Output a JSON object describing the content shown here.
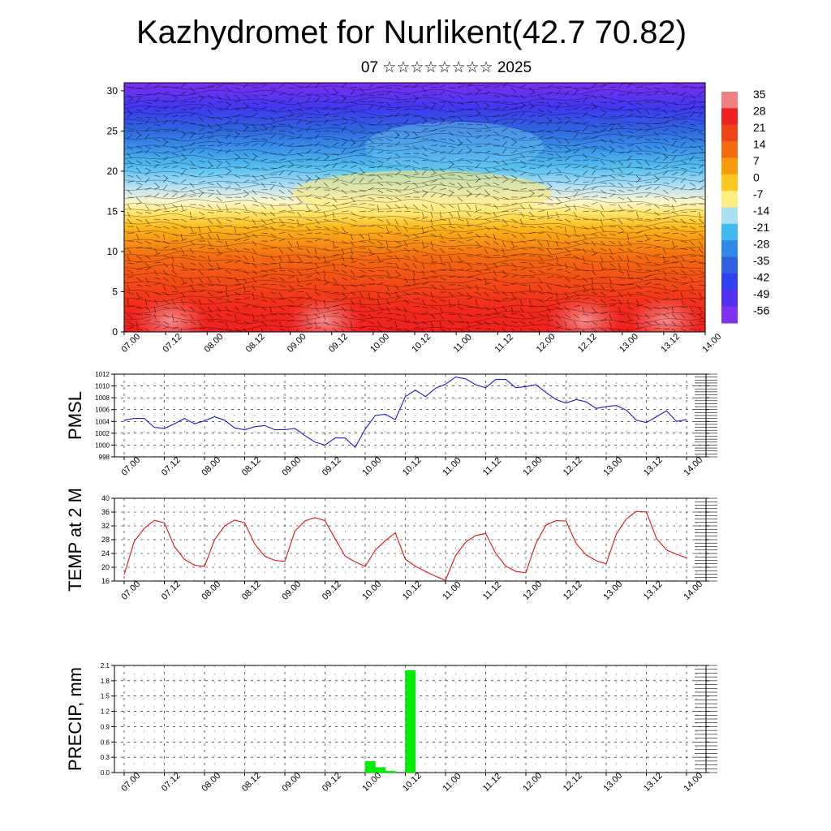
{
  "header": {
    "title": "Kazhydromet for Nurlikent(42.7 70.82)",
    "subtitle": "07 ☆☆☆☆☆☆☆☆ 2025"
  },
  "chart_data": [
    {
      "type": "heatmap",
      "name": "temperature cross-section with wind barbs",
      "ylim": [
        0,
        31
      ],
      "y_ticks": [
        "0",
        "5",
        "10",
        "15",
        "20",
        "25",
        "30"
      ],
      "x_ticks": [
        "07.00",
        "07.12",
        "08.00",
        "08.12",
        "09.00",
        "09.12",
        "10.00",
        "10.12",
        "11.00",
        "11.12",
        "12.00",
        "12.12",
        "13.00",
        "13.12",
        "14.00"
      ],
      "colorbar": {
        "labels": [
          "35",
          "28",
          "21",
          "14",
          "7",
          "0",
          "-7",
          "-14",
          "-21",
          "-28",
          "-35",
          "-42",
          "-49",
          "-56"
        ],
        "colors": [
          "#f08080",
          "#ee2222",
          "#f04418",
          "#f46a10",
          "#f89a0a",
          "#fcc820",
          "#ffee80",
          "#a8e0f0",
          "#40b8f0",
          "#3088e8",
          "#3060e0",
          "#3040f0",
          "#5030f0",
          "#8030f0"
        ]
      }
    },
    {
      "type": "line",
      "ylabel": "PMSL",
      "ylim": [
        998,
        1012
      ],
      "y_ticks": [
        "998",
        "1000",
        "1002",
        "1004",
        "1006",
        "1008",
        "1010",
        "1012"
      ],
      "x_ticks": [
        "07.00",
        "07.12",
        "08.00",
        "08.12",
        "09.00",
        "09.12",
        "10.00",
        "10.12",
        "11.00",
        "11.12",
        "12.00",
        "12.12",
        "13.00",
        "13.12",
        "14.00"
      ],
      "color": "#1a1adc",
      "x": [
        0,
        3,
        6,
        9,
        12,
        15,
        18,
        21,
        24,
        27,
        30,
        33,
        36,
        39,
        42,
        45,
        48,
        51,
        54,
        57,
        60,
        63,
        66,
        69,
        72,
        75,
        78,
        81,
        84,
        87,
        90,
        93,
        96,
        99,
        102,
        105,
        108,
        111,
        114,
        117,
        120,
        123,
        126,
        129,
        132,
        135,
        138,
        141,
        144,
        147,
        150,
        153,
        156,
        159,
        162,
        165,
        168
      ],
      "values": [
        1004.2,
        1004.5,
        1004.5,
        1003.0,
        1002.8,
        1003.6,
        1004.5,
        1003.6,
        1004.1,
        1004.8,
        1004.2,
        1002.9,
        1002.6,
        1003.1,
        1003.3,
        1002.6,
        1002.6,
        1002.8,
        1001.6,
        1000.5,
        1000.0,
        1001.2,
        1001.2,
        999.6,
        1002.7,
        1005.0,
        1005.2,
        1004.3,
        1008.2,
        1009.3,
        1008.2,
        1009.6,
        1010.3,
        1011.5,
        1011.2,
        1010.2,
        1009.7,
        1011.1,
        1011.1,
        1009.7,
        1009.9,
        1010.2,
        1008.9,
        1007.7,
        1007.1,
        1007.7,
        1007.3,
        1006.2,
        1006.5,
        1006.7,
        1005.9,
        1004.2,
        1003.8,
        1004.8,
        1005.8,
        1004.0,
        1004.3
      ]
    },
    {
      "type": "line",
      "ylabel": "TEMP at 2 M",
      "ylim": [
        16,
        40
      ],
      "y_ticks": [
        "16",
        "20",
        "24",
        "28",
        "32",
        "36",
        "40"
      ],
      "x_ticks": [
        "07.00",
        "07.12",
        "08.00",
        "08.12",
        "09.00",
        "09.12",
        "10.00",
        "10.12",
        "11.00",
        "11.12",
        "12.00",
        "12.12",
        "13.00",
        "13.12",
        "14.00"
      ],
      "color": "#dd1111",
      "x": [
        0,
        3,
        6,
        9,
        12,
        15,
        18,
        21,
        24,
        27,
        30,
        33,
        36,
        39,
        42,
        45,
        48,
        51,
        54,
        57,
        60,
        63,
        66,
        69,
        72,
        75,
        78,
        81,
        84,
        87,
        90,
        93,
        96,
        99,
        102,
        105,
        108,
        111,
        114,
        117,
        120,
        123,
        126,
        129,
        132,
        135,
        138,
        141,
        144,
        147,
        150,
        153,
        156,
        159,
        162,
        165,
        168
      ],
      "values": [
        17.8,
        27.5,
        31.3,
        33.6,
        32.9,
        26.0,
        22.3,
        20.6,
        20.2,
        28.0,
        32.0,
        33.7,
        32.9,
        26.7,
        23.2,
        22.0,
        21.7,
        30.5,
        33.4,
        34.4,
        33.5,
        28.3,
        23.2,
        21.6,
        20.2,
        25.0,
        27.7,
        30.0,
        22.3,
        20.3,
        18.8,
        17.4,
        16.2,
        23.4,
        27.3,
        29.2,
        29.8,
        24.0,
        20.3,
        18.8,
        18.4,
        27.0,
        32.2,
        33.5,
        33.4,
        26.9,
        23.6,
        21.9,
        21.0,
        29.6,
        34.0,
        36.2,
        36.0,
        28.4,
        25.0,
        23.8,
        22.7
      ]
    },
    {
      "type": "bar",
      "ylabel": "PRECIP, mm",
      "ylim": [
        0,
        2.1
      ],
      "y_ticks": [
        "0.0",
        "0.3",
        "0.6",
        "0.9",
        "1.2",
        "1.5",
        "1.8",
        "2.1"
      ],
      "x_ticks": [
        "07.00",
        "07.12",
        "08.00",
        "08.12",
        "09.00",
        "09.12",
        "10.00",
        "10.12",
        "11.00",
        "11.12",
        "12.00",
        "12.12",
        "13.00",
        "13.12",
        "14.00"
      ],
      "color": "#00ee00",
      "x": [
        72,
        75,
        78,
        84
      ],
      "values": [
        0.22,
        0.1,
        0.03,
        2.0
      ]
    }
  ]
}
